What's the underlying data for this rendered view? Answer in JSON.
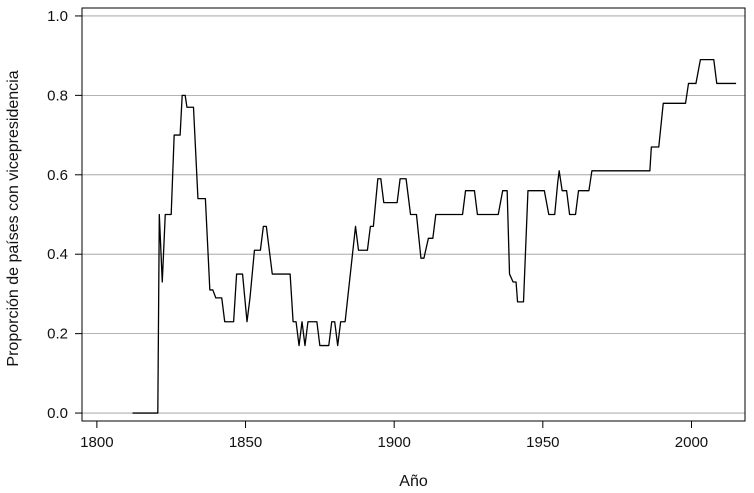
{
  "chart_data": {
    "type": "line",
    "title": "",
    "xlabel": "Año",
    "ylabel": "Proporción de países con vicepresidencia",
    "xlim": [
      1795,
      2018
    ],
    "ylim": [
      -0.02,
      1.02
    ],
    "grid": true,
    "x_ticks": [
      {
        "value": 1800,
        "label": "1800"
      },
      {
        "value": 1850,
        "label": "1850"
      },
      {
        "value": 1900,
        "label": "1900"
      },
      {
        "value": 1950,
        "label": "1950"
      },
      {
        "value": 2000,
        "label": "2000"
      }
    ],
    "y_ticks": [
      {
        "value": 0.0,
        "label": "0.0"
      },
      {
        "value": 0.2,
        "label": "0.2"
      },
      {
        "value": 0.4,
        "label": "0.4"
      },
      {
        "value": 0.6,
        "label": "0.6"
      },
      {
        "value": 0.8,
        "label": "0.8"
      },
      {
        "value": 1.0,
        "label": "1.0"
      }
    ],
    "colors": {
      "line": "#000000",
      "grid": "#9a9a9a",
      "axis": "#000000"
    },
    "series": [
      {
        "points": [
          [
            1812,
            0.0
          ],
          [
            1820.5,
            0.0
          ],
          [
            1821,
            0.5
          ],
          [
            1822,
            0.33
          ],
          [
            1823,
            0.5
          ],
          [
            1825,
            0.5
          ],
          [
            1826,
            0.7
          ],
          [
            1828,
            0.7
          ],
          [
            1828.7,
            0.8
          ],
          [
            1829.7,
            0.8
          ],
          [
            1830.3,
            0.77
          ],
          [
            1832.5,
            0.77
          ],
          [
            1834,
            0.54
          ],
          [
            1836.5,
            0.54
          ],
          [
            1838,
            0.31
          ],
          [
            1839,
            0.31
          ],
          [
            1840,
            0.29
          ],
          [
            1842,
            0.29
          ],
          [
            1843,
            0.23
          ],
          [
            1846,
            0.23
          ],
          [
            1847,
            0.35
          ],
          [
            1849,
            0.35
          ],
          [
            1850.5,
            0.23
          ],
          [
            1851.5,
            0.29
          ],
          [
            1853,
            0.41
          ],
          [
            1855,
            0.41
          ],
          [
            1856,
            0.47
          ],
          [
            1857,
            0.47
          ],
          [
            1859,
            0.35
          ],
          [
            1865,
            0.35
          ],
          [
            1866,
            0.23
          ],
          [
            1867,
            0.23
          ],
          [
            1868,
            0.17
          ],
          [
            1869,
            0.23
          ],
          [
            1870,
            0.17
          ],
          [
            1871,
            0.23
          ],
          [
            1874,
            0.23
          ],
          [
            1875,
            0.17
          ],
          [
            1878,
            0.17
          ],
          [
            1879,
            0.23
          ],
          [
            1880,
            0.23
          ],
          [
            1881,
            0.17
          ],
          [
            1882,
            0.23
          ],
          [
            1883.5,
            0.23
          ],
          [
            1887,
            0.47
          ],
          [
            1888,
            0.41
          ],
          [
            1891,
            0.41
          ],
          [
            1892,
            0.47
          ],
          [
            1893,
            0.47
          ],
          [
            1894.5,
            0.59
          ],
          [
            1895.5,
            0.59
          ],
          [
            1896.5,
            0.53
          ],
          [
            1901,
            0.53
          ],
          [
            1902,
            0.59
          ],
          [
            1904,
            0.59
          ],
          [
            1905.5,
            0.5
          ],
          [
            1907.5,
            0.5
          ],
          [
            1909,
            0.39
          ],
          [
            1910,
            0.39
          ],
          [
            1911.5,
            0.44
          ],
          [
            1913,
            0.44
          ],
          [
            1914,
            0.5
          ],
          [
            1923,
            0.5
          ],
          [
            1924,
            0.56
          ],
          [
            1927,
            0.56
          ],
          [
            1928,
            0.5
          ],
          [
            1935,
            0.5
          ],
          [
            1936.5,
            0.56
          ],
          [
            1938,
            0.56
          ],
          [
            1938.8,
            0.35
          ],
          [
            1940,
            0.33
          ],
          [
            1941,
            0.33
          ],
          [
            1941.5,
            0.28
          ],
          [
            1943.5,
            0.28
          ],
          [
            1945,
            0.56
          ],
          [
            1950.5,
            0.56
          ],
          [
            1952,
            0.5
          ],
          [
            1954,
            0.5
          ],
          [
            1955,
            0.58
          ],
          [
            1955.5,
            0.61
          ],
          [
            1956.5,
            0.56
          ],
          [
            1958,
            0.56
          ],
          [
            1959,
            0.5
          ],
          [
            1961,
            0.5
          ],
          [
            1962,
            0.56
          ],
          [
            1965.5,
            0.56
          ],
          [
            1966.5,
            0.61
          ],
          [
            1986,
            0.61
          ],
          [
            1986.5,
            0.67
          ],
          [
            1989,
            0.67
          ],
          [
            1990.5,
            0.78
          ],
          [
            1998,
            0.78
          ],
          [
            1999,
            0.83
          ],
          [
            2001.5,
            0.83
          ],
          [
            2003,
            0.89
          ],
          [
            2007.5,
            0.89
          ],
          [
            2008.5,
            0.83
          ],
          [
            2015,
            0.83
          ]
        ]
      }
    ]
  }
}
